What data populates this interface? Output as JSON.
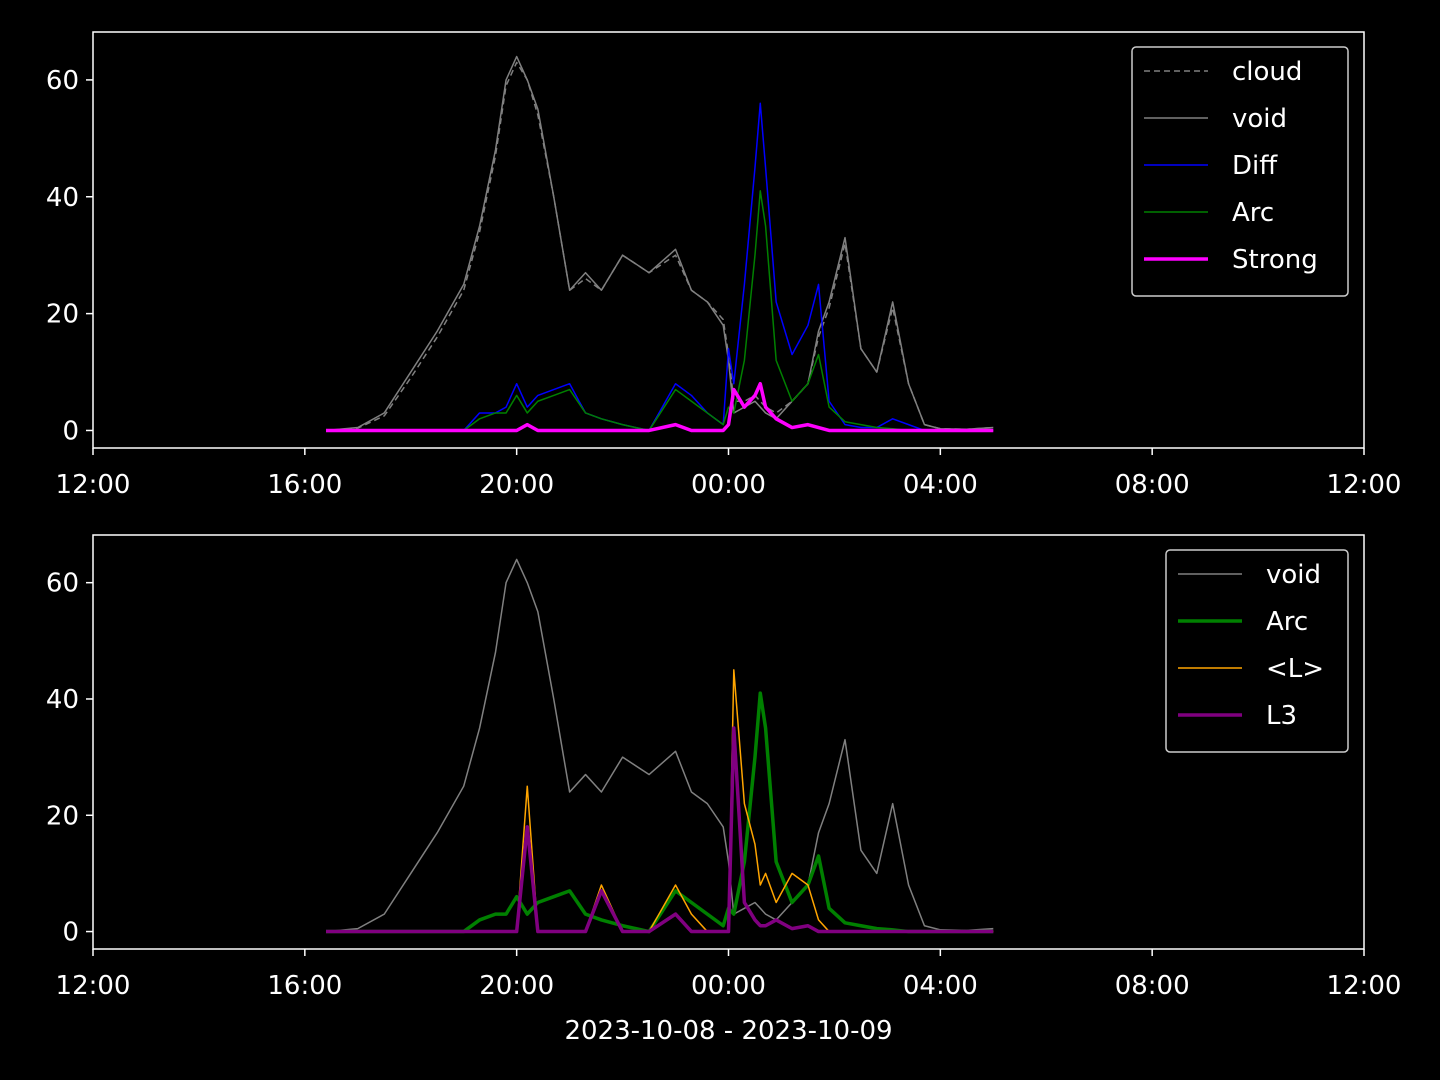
{
  "chart_data": [
    {
      "type": "line",
      "x": [
        16.4,
        17,
        17.5,
        18,
        18.5,
        19,
        19.3,
        19.6,
        19.8,
        20,
        20.2,
        20.4,
        20.7,
        21,
        21.3,
        21.6,
        22,
        22.5,
        23,
        23.3,
        23.6,
        23.9,
        24,
        24.1,
        24.3,
        24.5,
        24.6,
        24.7,
        24.9,
        25.2,
        25.5,
        25.7,
        25.9,
        26.2,
        26.5,
        26.8,
        27.1,
        27.4,
        27.7,
        28,
        28.5,
        29
      ],
      "xlim": [
        12,
        36
      ],
      "xticks": [
        {
          "value": 12,
          "label": "12:00"
        },
        {
          "value": 16,
          "label": "16:00"
        },
        {
          "value": 20,
          "label": "20:00"
        },
        {
          "value": 24,
          "label": "00:00"
        },
        {
          "value": 28,
          "label": "04:00"
        },
        {
          "value": 32,
          "label": "08:00"
        },
        {
          "value": 36,
          "label": "12:00"
        }
      ],
      "ylim": [
        -3,
        68.2
      ],
      "yticks": [
        0,
        20,
        40,
        60
      ],
      "legend": "upper right",
      "series": [
        {
          "name": "cloud",
          "color": "#808080",
          "linestyle": "dashed",
          "linewidth": 1.5,
          "values": [
            0,
            0.4,
            2.5,
            9,
            16,
            24,
            34,
            47,
            59,
            63,
            60,
            54,
            40,
            24,
            26,
            24,
            30,
            27,
            30,
            24,
            22,
            19,
            13,
            5,
            5,
            6,
            5,
            4,
            3,
            5,
            8,
            16,
            21,
            32,
            14,
            10,
            21,
            8,
            1,
            0.3,
            0.2,
            0.5
          ]
        },
        {
          "name": "void",
          "color": "#808080",
          "linestyle": "solid",
          "linewidth": 1.5,
          "values": [
            0,
            0.5,
            3,
            10,
            17,
            25,
            35,
            48,
            60,
            64,
            60,
            55,
            40,
            24,
            27,
            24,
            30,
            27,
            31,
            24,
            22,
            18,
            12,
            3,
            4,
            5,
            4,
            3,
            2,
            5,
            8,
            17,
            22,
            33,
            14,
            10,
            22,
            8,
            1,
            0.3,
            0.2,
            0.5
          ]
        },
        {
          "name": "Diff",
          "color": "#0000ff",
          "linestyle": "solid",
          "linewidth": 1.5,
          "values": [
            0,
            0,
            0,
            0,
            0,
            0,
            3,
            3,
            4,
            8,
            4,
            6,
            7,
            8,
            3,
            2,
            1,
            0,
            8,
            6,
            3,
            1,
            14,
            8,
            25,
            45,
            56,
            45,
            22,
            13,
            18,
            25,
            5,
            1,
            0.5,
            0.5,
            2,
            1,
            0,
            0,
            0,
            0
          ]
        },
        {
          "name": "Arc",
          "color": "#008000",
          "linestyle": "solid",
          "linewidth": 1.5,
          "values": [
            0,
            0,
            0,
            0,
            0,
            0,
            2,
            3,
            3,
            6,
            3,
            5,
            6,
            7,
            3,
            2,
            1,
            0,
            7,
            5,
            3,
            1,
            4,
            3,
            12,
            30,
            41,
            35,
            12,
            5,
            8,
            13,
            4,
            1.5,
            1,
            0.5,
            0.3,
            0,
            0,
            0,
            0,
            0
          ]
        },
        {
          "name": "Strong",
          "color": "#ff00ff",
          "linestyle": "solid",
          "linewidth": 3.5,
          "values": [
            0,
            0,
            0,
            0,
            0,
            0,
            0,
            0,
            0,
            0,
            1,
            0,
            0,
            0,
            0,
            0,
            0,
            0,
            1,
            0,
            0,
            0,
            1,
            7,
            4,
            6,
            8,
            4,
            2,
            0.5,
            1,
            0.5,
            0,
            0,
            0,
            0,
            0,
            0,
            0,
            0,
            0,
            0
          ]
        }
      ]
    },
    {
      "type": "line",
      "x": [
        16.4,
        17,
        17.5,
        18,
        18.5,
        19,
        19.3,
        19.6,
        19.8,
        20,
        20.2,
        20.4,
        20.7,
        21,
        21.3,
        21.6,
        22,
        22.5,
        23,
        23.3,
        23.6,
        23.9,
        24,
        24.1,
        24.3,
        24.5,
        24.6,
        24.7,
        24.9,
        25.2,
        25.5,
        25.7,
        25.9,
        26.2,
        26.5,
        26.8,
        27.1,
        27.4,
        27.7,
        28,
        28.5,
        29
      ],
      "xlim": [
        12,
        36
      ],
      "xticks": [
        {
          "value": 12,
          "label": "12:00"
        },
        {
          "value": 16,
          "label": "16:00"
        },
        {
          "value": 20,
          "label": "20:00"
        },
        {
          "value": 24,
          "label": "00:00"
        },
        {
          "value": 28,
          "label": "04:00"
        },
        {
          "value": 32,
          "label": "08:00"
        },
        {
          "value": 36,
          "label": "12:00"
        }
      ],
      "ylim": [
        -3,
        68.2
      ],
      "yticks": [
        0,
        20,
        40,
        60
      ],
      "xlabel": "2023-10-08 - 2023-10-09",
      "legend": "upper right",
      "series": [
        {
          "name": "void",
          "color": "#808080",
          "linestyle": "solid",
          "linewidth": 1.5,
          "values": [
            0,
            0.5,
            3,
            10,
            17,
            25,
            35,
            48,
            60,
            64,
            60,
            55,
            40,
            24,
            27,
            24,
            30,
            27,
            31,
            24,
            22,
            18,
            12,
            3,
            4,
            5,
            4,
            3,
            2,
            5,
            8,
            17,
            22,
            33,
            14,
            10,
            22,
            8,
            1,
            0.3,
            0.2,
            0.5
          ]
        },
        {
          "name": "Arc",
          "color": "#008000",
          "linestyle": "solid",
          "linewidth": 3.5,
          "values": [
            0,
            0,
            0,
            0,
            0,
            0,
            2,
            3,
            3,
            6,
            3,
            5,
            6,
            7,
            3,
            2,
            1,
            0,
            7,
            5,
            3,
            1,
            4,
            3,
            12,
            30,
            41,
            35,
            12,
            5,
            8,
            13,
            4,
            1.5,
            1,
            0.5,
            0.3,
            0,
            0,
            0,
            0,
            0
          ]
        },
        {
          "name": "<L>",
          "color": "#ffa500",
          "linestyle": "solid",
          "linewidth": 1.5,
          "values": [
            0,
            0,
            0,
            0,
            0,
            0,
            0,
            0,
            0,
            0,
            25,
            0,
            0,
            0,
            0,
            8,
            0,
            0,
            8,
            3,
            0,
            0,
            0,
            45,
            22,
            15,
            8,
            10,
            5,
            10,
            8,
            2,
            0,
            0,
            0,
            0,
            0,
            0,
            0,
            0,
            0,
            0
          ]
        },
        {
          "name": "L3",
          "color": "#800080",
          "linestyle": "solid",
          "linewidth": 3.5,
          "values": [
            0,
            0,
            0,
            0,
            0,
            0,
            0,
            0,
            0,
            0,
            18,
            0,
            0,
            0,
            0,
            7,
            0,
            0,
            3,
            0,
            0,
            0,
            0,
            35,
            5,
            2,
            1,
            1,
            2,
            0.5,
            1,
            0,
            0,
            0,
            0,
            0,
            0,
            0,
            0,
            0,
            0,
            0
          ]
        }
      ]
    }
  ]
}
